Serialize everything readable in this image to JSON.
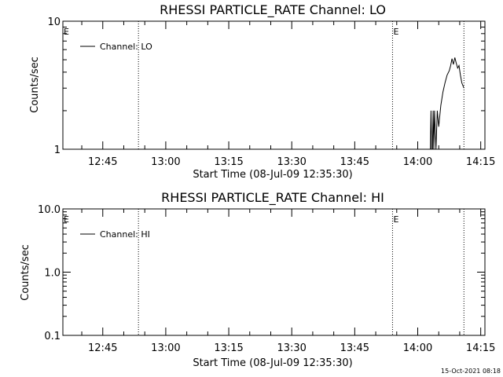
{
  "chart_data": [
    {
      "type": "line",
      "title": "RHESSI PARTICLE_RATE Channel: LO",
      "xlabel": "Start Time (08-Jul-09 12:35:30)",
      "ylabel": "Counts/sec",
      "yscale": "log",
      "ylim": [
        1,
        10
      ],
      "xlim": [
        "12:35:30",
        "14:16:00"
      ],
      "x_ticks": [
        "12:45",
        "13:00",
        "13:15",
        "13:30",
        "13:45",
        "14:00",
        "14:15"
      ],
      "y_ticks": [
        "1",
        "10"
      ],
      "grid": false,
      "legend": "top-left",
      "series": [
        {
          "name": "Channel: LO",
          "x": [
            "14:03:00",
            "14:03:10",
            "14:03:20",
            "14:03:30",
            "14:03:40",
            "14:03:50",
            "14:04:00",
            "14:04:20",
            "14:04:40",
            "14:05:00",
            "14:05:30",
            "14:06:00",
            "14:06:30",
            "14:07:00",
            "14:07:30",
            "14:07:50",
            "14:08:10",
            "14:08:30",
            "14:08:50",
            "14:09:10",
            "14:09:30",
            "14:09:50",
            "14:10:10",
            "14:10:30",
            "14:11:00"
          ],
          "y": [
            1,
            2,
            1,
            1,
            2,
            1,
            2,
            1,
            2,
            1.5,
            2.2,
            2.8,
            3.3,
            3.8,
            4.1,
            4.5,
            5.1,
            4.6,
            5.2,
            4.7,
            4.3,
            4.5,
            3.8,
            3.3,
            3.0
          ]
        }
      ],
      "annotations": [
        {
          "label": "E",
          "x": "12:35:30"
        },
        {
          "label": "E",
          "x": "13:54:00"
        }
      ],
      "dotted_lines_x": [
        "12:53:30",
        "13:54:00",
        "14:11:00"
      ]
    },
    {
      "type": "line",
      "title": "RHESSI PARTICLE_RATE Channel: HI",
      "xlabel": "Start Time (08-Jul-09 12:35:30)",
      "ylabel": "Counts/sec",
      "yscale": "log",
      "ylim": [
        0.1,
        10
      ],
      "xlim": [
        "12:35:30",
        "14:16:00"
      ],
      "x_ticks": [
        "12:45",
        "13:00",
        "13:15",
        "13:30",
        "13:45",
        "14:00",
        "14:15"
      ],
      "y_ticks": [
        "0.1",
        "1.0",
        "10.0"
      ],
      "grid": false,
      "legend": "top-left",
      "series": [
        {
          "name": "Channel: HI",
          "x": [],
          "y": []
        }
      ],
      "annotations": [
        {
          "label": "E",
          "x": "12:35:30"
        },
        {
          "label": "E",
          "x": "13:54:00"
        }
      ],
      "dotted_lines_x": [
        "12:53:30",
        "13:54:00",
        "14:11:00"
      ]
    }
  ],
  "footer": {
    "timestamp": "15-Oct-2021 08:18"
  }
}
